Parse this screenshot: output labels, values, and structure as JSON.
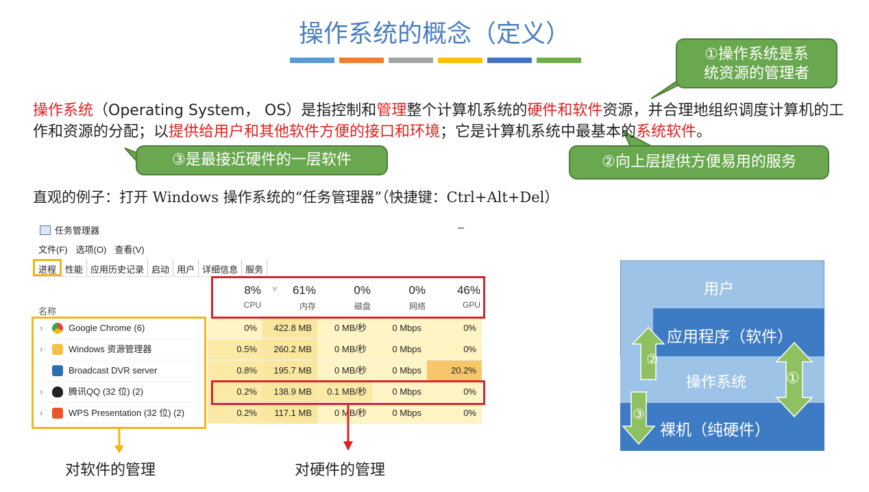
{
  "title": "操作系统的概念（定义）",
  "accent_bars": [
    "#5b9bd5",
    "#ed7d31",
    "#a5a5a5",
    "#ffc000",
    "#4472c4",
    "#70ad47"
  ],
  "callouts": {
    "c1": "①操作系统是系统资源的管理者",
    "c2": "②向上层提供方便易用的服务",
    "c3": "③是最接近硬件的一层软件"
  },
  "paragraph": {
    "p1": "操作系统",
    "p2": "（Operating System， OS）是指控制和",
    "p3": "管理",
    "p4": "整个计算机系统的",
    "p5": "硬件和软件",
    "p6": "资源，并合理地组织调度计算机的工作和资源的分配；以",
    "p7": "提供给用户和其他软件方便的接口和环境",
    "p8": "；它是计算机系统中最基本的",
    "p9": "系统软件",
    "p10": "。"
  },
  "example": "直观的例子：打开 Windows 操作系统的“任务管理器”（快捷键：Ctrl+Alt+Del）",
  "task_manager": {
    "title": "任务管理器",
    "minimize": "–",
    "menu": [
      "文件(F)",
      "选项(O)",
      "查看(V)"
    ],
    "tabs": [
      "进程",
      "性能",
      "应用历史记录",
      "启动",
      "用户",
      "详细信息",
      "服务"
    ],
    "name_header": "名称",
    "columns": [
      {
        "pct": "8%",
        "name": "CPU"
      },
      {
        "pct": "61%",
        "name": "内存"
      },
      {
        "pct": "0%",
        "name": "磁盘"
      },
      {
        "pct": "0%",
        "name": "网络"
      },
      {
        "pct": "46%",
        "name": "GPU"
      }
    ],
    "rows": [
      {
        "name": "Google Chrome (6)",
        "cpu": "0%",
        "mem": "422.8 MB",
        "disk": "0 MB/秒",
        "net": "0 Mbps",
        "gpu": "0%"
      },
      {
        "name": "Windows 资源管理器",
        "cpu": "0.5%",
        "mem": "260.2 MB",
        "disk": "0 MB/秒",
        "net": "0 Mbps",
        "gpu": "0%"
      },
      {
        "name": "Broadcast DVR server",
        "cpu": "0.8%",
        "mem": "195.7 MB",
        "disk": "0 MB/秒",
        "net": "0 Mbps",
        "gpu": "20.2%"
      },
      {
        "name": "腾讯QQ (32 位) (2)",
        "cpu": "0.2%",
        "mem": "138.9 MB",
        "disk": "0.1 MB/秒",
        "net": "0 Mbps",
        "gpu": "0%"
      },
      {
        "name": "WPS Presentation (32 位) (2)",
        "cpu": "0.2%",
        "mem": "117.1 MB",
        "disk": "0 MB/秒",
        "net": "0 Mbps",
        "gpu": "0%"
      }
    ]
  },
  "labels": {
    "software": "对软件的管理",
    "hardware": "对硬件的管理"
  },
  "layers": {
    "user": "用户",
    "app": "应用程序（软件）",
    "os": "操作系统",
    "hw": "裸机（纯硬件）",
    "n1": "①",
    "n2": "②",
    "n3": "③"
  }
}
